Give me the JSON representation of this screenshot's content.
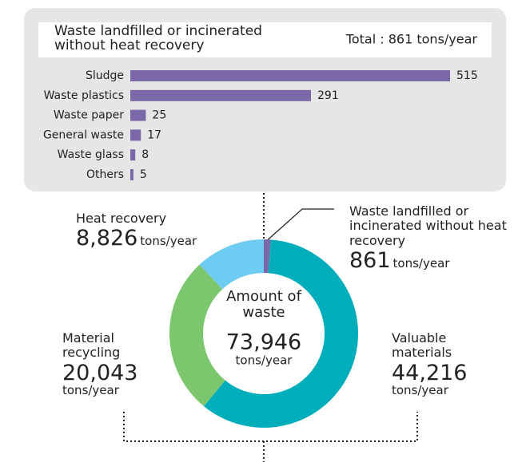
{
  "chart_data": [
    {
      "type": "hbar",
      "title": "Waste landfilled or incinerated without heat recovery",
      "subtitle": "Total : 861 tons/year",
      "categories": [
        "Sludge",
        "Waste plastics",
        "Waste paper",
        "General waste",
        "Waste glass",
        "Others"
      ],
      "values": [
        515,
        291,
        25,
        17,
        8,
        5
      ],
      "color": "#7b68a8"
    },
    {
      "type": "donut",
      "center_title": "Amount of waste",
      "center_value": "73,946",
      "unit": "tons/year",
      "categories": [
        "Waste landfilled or incinerated without heat recovery",
        "Valuable materials",
        "Material recycling",
        "Heat recovery"
      ],
      "values": [
        861,
        44216,
        20043,
        8826
      ],
      "value_labels": [
        "861",
        "44,216",
        "20,043",
        "8,826"
      ],
      "colors": [
        "#7b68a8",
        "#00aebb",
        "#7cc66e",
        "#6ecbf2"
      ]
    }
  ]
}
